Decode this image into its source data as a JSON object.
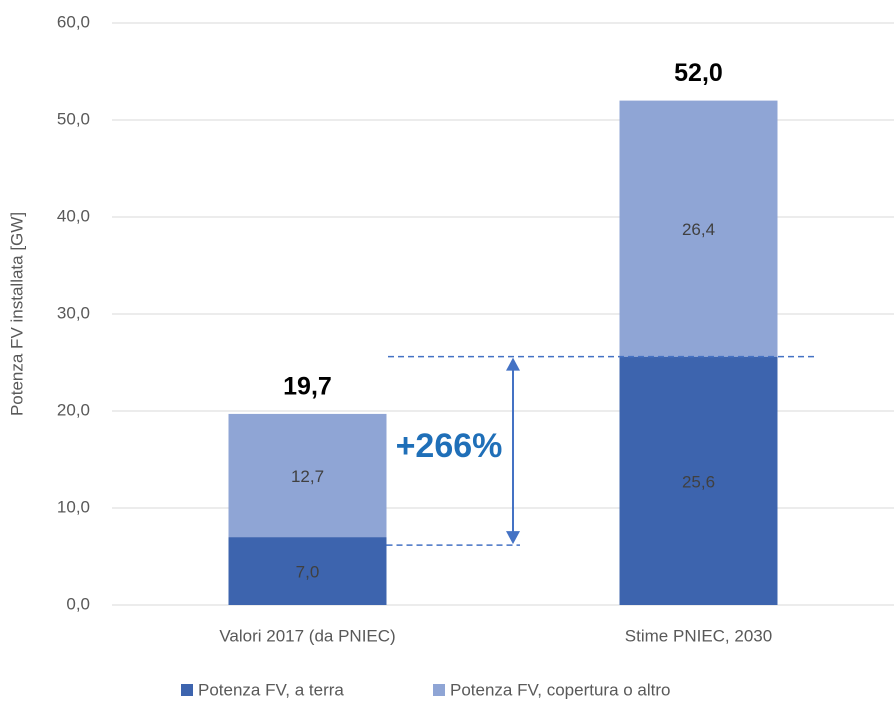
{
  "chart_data": {
    "type": "stacked_bar",
    "y_label": "Potenza FV installata [GW]",
    "categories": [
      "Valori 2017 (da PNIEC)",
      "Stime PNIEC, 2030"
    ],
    "series": [
      {
        "name": "Potenza FV, a terra",
        "color": "#3d64ae",
        "values": [
          7.0,
          25.6
        ],
        "value_labels": [
          "7,0",
          "25,6"
        ]
      },
      {
        "name": "Potenza FV, copertura o altro",
        "color": "#8fa5d5",
        "values": [
          12.7,
          26.4
        ],
        "value_labels": [
          "12,7",
          "26,4"
        ]
      }
    ],
    "totals": [
      19.7,
      52.0
    ],
    "total_labels": [
      "19,7",
      "52,0"
    ],
    "annotation": "+266%",
    "ylim": [
      0,
      60
    ],
    "yticks": [
      {
        "value": 0,
        "label": "0,0"
      },
      {
        "value": 10,
        "label": "10,0"
      },
      {
        "value": 20,
        "label": "20,0"
      },
      {
        "value": 30,
        "label": "30,0"
      },
      {
        "value": 40,
        "label": "40,0"
      },
      {
        "value": 50,
        "label": "50,0"
      },
      {
        "value": 60,
        "label": "60,0"
      }
    ],
    "grid": true,
    "legend": "bottom"
  }
}
